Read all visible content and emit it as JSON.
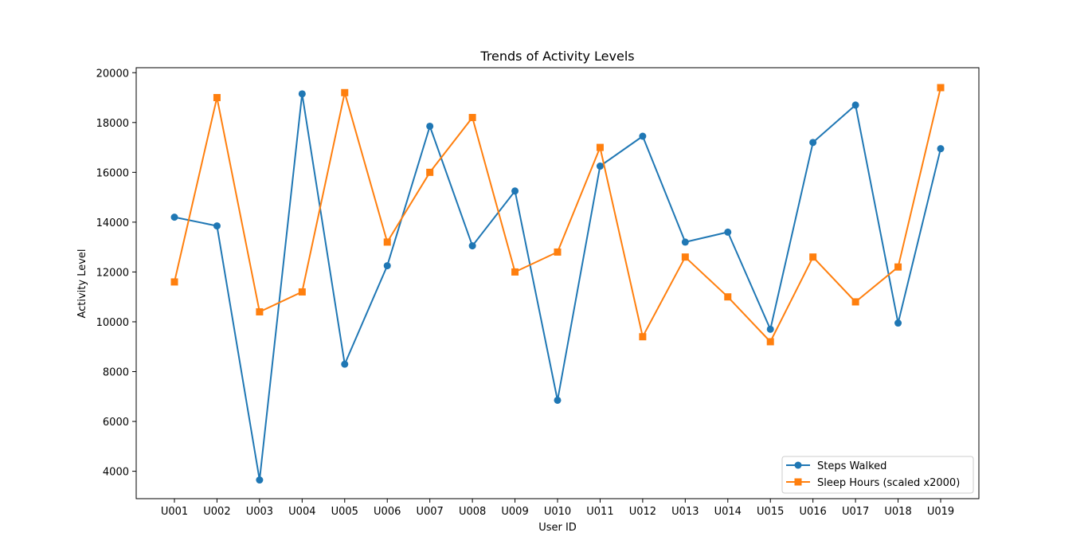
{
  "chart_data": {
    "type": "line",
    "title": "Trends of Activity Levels",
    "xlabel": "User ID",
    "ylabel": "Activity Level",
    "categories": [
      "U001",
      "U002",
      "U003",
      "U004",
      "U005",
      "U006",
      "U007",
      "U008",
      "U009",
      "U010",
      "U011",
      "U012",
      "U013",
      "U014",
      "U015",
      "U016",
      "U017",
      "U018",
      "U019"
    ],
    "ylim": [
      2900,
      20200
    ],
    "yticks": [
      4000,
      6000,
      8000,
      10000,
      12000,
      14000,
      16000,
      18000,
      20000
    ],
    "grid": false,
    "legend_position": "lower-right",
    "series": [
      {
        "name": "Steps Walked",
        "color": "#1f77b4",
        "marker": "circle",
        "values": [
          14200,
          13850,
          3650,
          19150,
          8300,
          12250,
          17850,
          13050,
          15250,
          6850,
          16250,
          17450,
          13200,
          13600,
          9700,
          17200,
          18700,
          9950,
          16950
        ]
      },
      {
        "name": "Sleep Hours (scaled x2000)",
        "color": "#ff7f0e",
        "marker": "square",
        "values": [
          11600,
          19000,
          10400,
          11200,
          19200,
          13200,
          16000,
          18200,
          12000,
          12800,
          17000,
          9400,
          12600,
          11000,
          9200,
          12600,
          10800,
          12200,
          19400
        ]
      }
    ]
  }
}
